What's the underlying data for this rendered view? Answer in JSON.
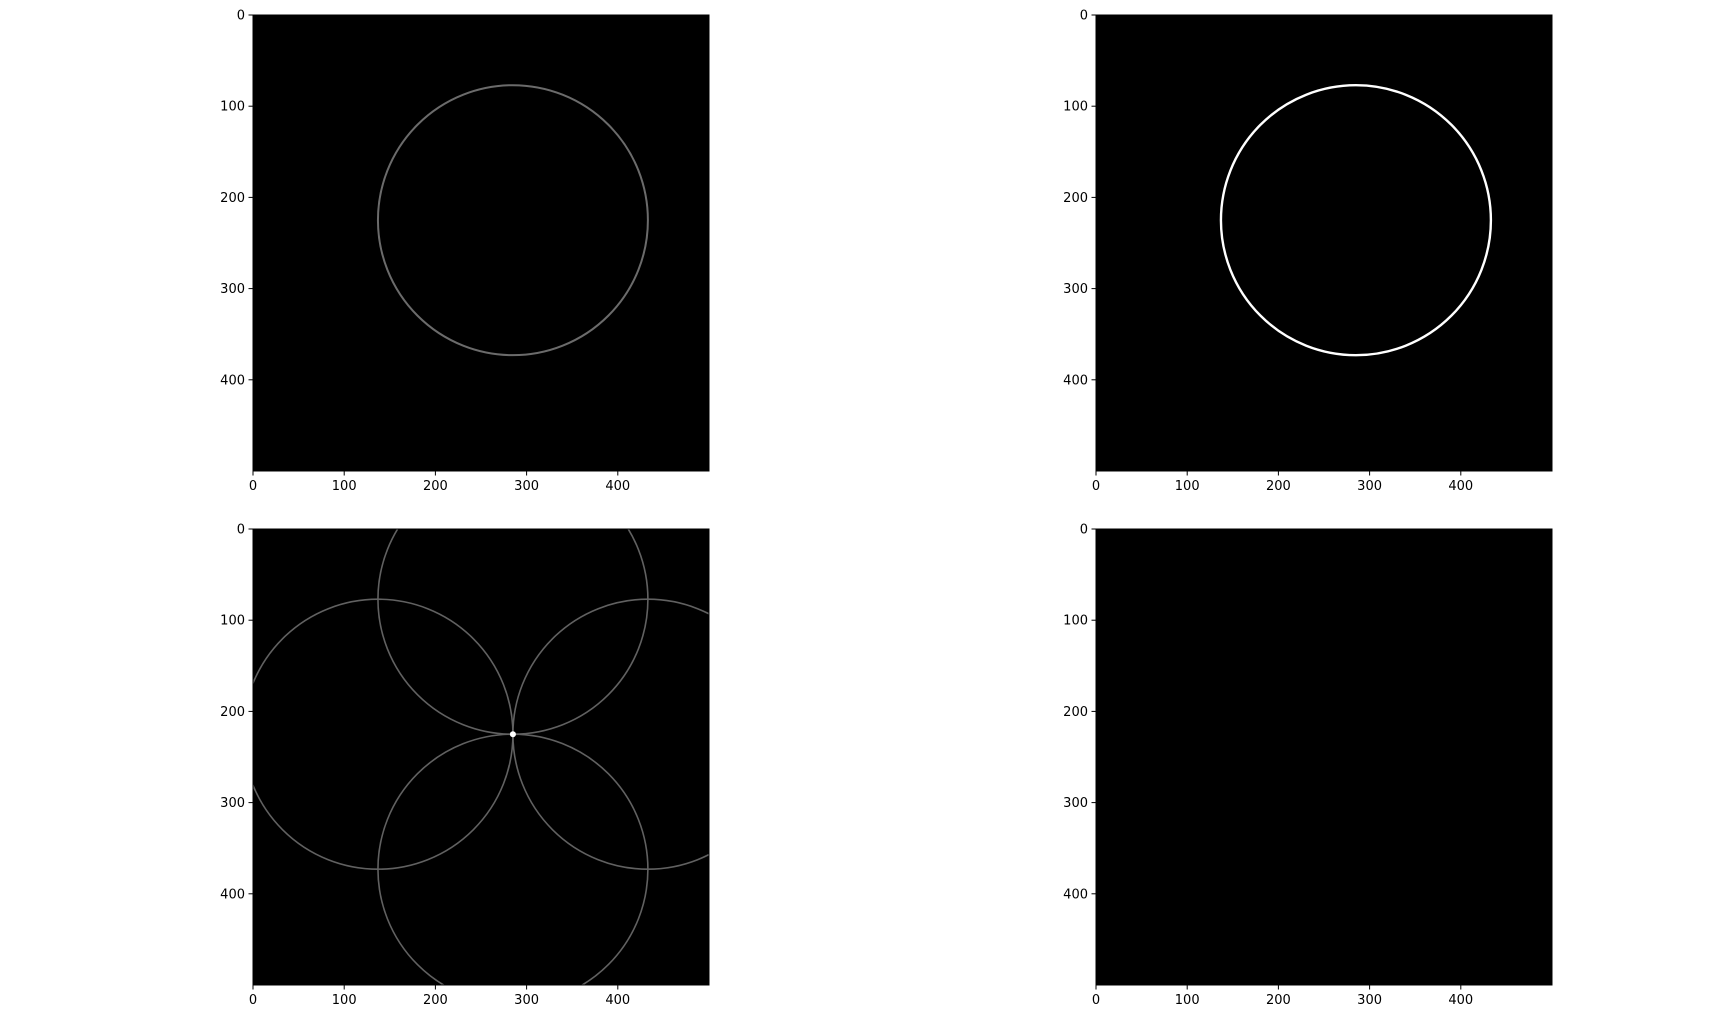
{
  "chart_data": [
    {
      "type": "image",
      "colormap": "gray",
      "xlim": [
        0,
        500
      ],
      "ylim": [
        500,
        0
      ],
      "xticks": [
        0,
        100,
        200,
        300,
        400
      ],
      "yticks": [
        0,
        100,
        200,
        300,
        400
      ],
      "grid": false,
      "image_content": {
        "shape": "circle",
        "center": [
          285,
          225
        ],
        "radius": 148,
        "intensity": 0.42
      }
    },
    {
      "type": "image",
      "colormap": "gray",
      "xlim": [
        0,
        500
      ],
      "ylim": [
        500,
        0
      ],
      "xticks": [
        0,
        100,
        200,
        300,
        400
      ],
      "yticks": [
        0,
        100,
        200,
        300,
        400
      ],
      "grid": false,
      "image_content": {
        "shape": "circle",
        "center": [
          285,
          225
        ],
        "radius": 148,
        "intensity": 1.0
      }
    },
    {
      "type": "image",
      "colormap": "gray",
      "xlim": [
        0,
        500
      ],
      "ylim": [
        500,
        0
      ],
      "xticks": [
        0,
        100,
        200,
        300,
        400
      ],
      "yticks": [
        0,
        100,
        200,
        300,
        400
      ],
      "grid": false,
      "image_content": {
        "shape": "circles",
        "centers": [
          [
            285,
            77
          ],
          [
            137,
            225
          ],
          [
            433,
            225
          ],
          [
            285,
            373
          ]
        ],
        "radius": 148,
        "intensity": 0.38,
        "peak": [
          285,
          225
        ]
      }
    },
    {
      "type": "image",
      "colormap": "gray",
      "xlim": [
        0,
        500
      ],
      "ylim": [
        500,
        0
      ],
      "xticks": [
        0,
        100,
        200,
        300,
        400
      ],
      "yticks": [
        0,
        100,
        200,
        300,
        400
      ],
      "grid": false,
      "image_content": {
        "shape": "empty"
      }
    }
  ]
}
